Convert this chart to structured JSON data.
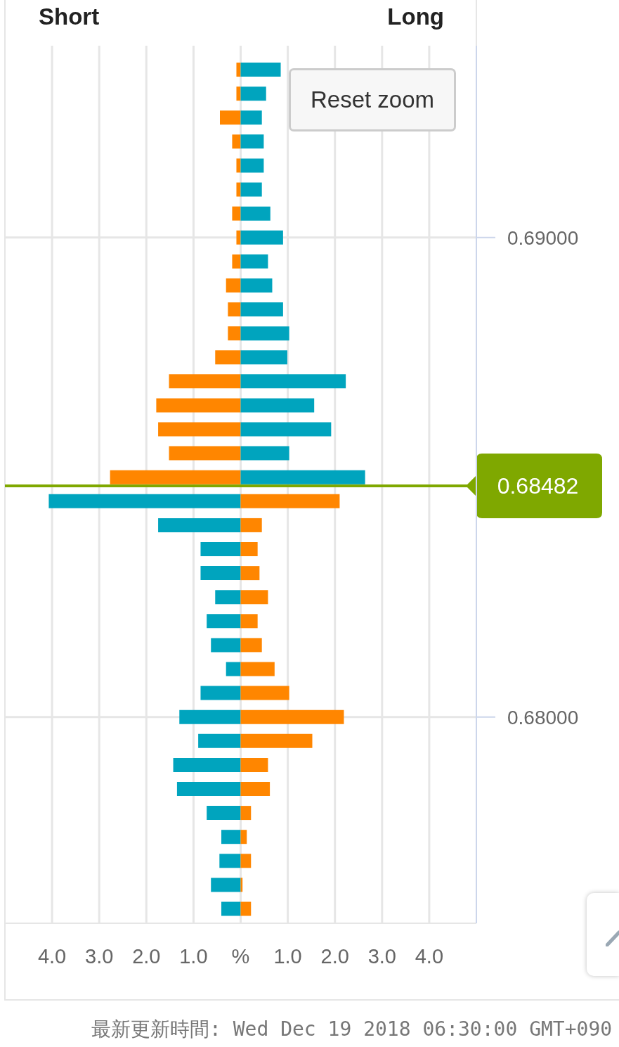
{
  "chart_data": {
    "type": "bar",
    "orientation": "horizontal",
    "stacked": true,
    "x": [
      0.6935,
      0.693,
      0.6925,
      0.692,
      0.6915,
      0.691,
      0.6905,
      0.69,
      0.6895,
      0.689,
      0.6885,
      0.688,
      0.6875,
      0.687,
      0.6865,
      0.686,
      0.6855,
      0.685,
      0.6845,
      0.684,
      0.6835,
      0.683,
      0.6825,
      0.682,
      0.6815,
      0.681,
      0.6805,
      0.68,
      0.6795,
      0.679,
      0.6785,
      0.678,
      0.6775,
      0.677,
      0.6765,
      0.676
    ],
    "series": [
      {
        "colors": [
          "#ff8600",
          "#ff8600",
          "#ff8600",
          "#ff8600",
          "#ff8600",
          "#ff8600",
          "#ff8600",
          "#ff8600",
          "#ff8600",
          "#ff8600",
          "#ff8600",
          "#ff8600",
          "#ff8600",
          "#ff8600",
          "#ff8600",
          "#ff8600",
          "#ff8600",
          "#ff8600",
          "#00a4be",
          "#00a4be",
          "#00a4be",
          "#00a4be",
          "#00a4be",
          "#00a4be",
          "#00a4be",
          "#00a4be",
          "#00a4be",
          "#00a4be",
          "#00a4be",
          "#00a4be",
          "#00a4be",
          "#00a4be",
          "#00a4be",
          "#00a4be",
          "#00a4be",
          "#00a4be"
        ],
        "values": [
          -0.09,
          -0.09,
          -0.44,
          -0.18,
          -0.09,
          -0.09,
          -0.18,
          -0.09,
          -0.18,
          -0.31,
          -0.27,
          -0.27,
          -0.54,
          -1.52,
          -1.79,
          -1.75,
          -1.52,
          -2.77,
          -4.07,
          -1.75,
          -0.85,
          -0.85,
          -0.54,
          -0.72,
          -0.63,
          -0.31,
          -0.85,
          -1.3,
          -0.9,
          -1.43,
          -1.35,
          -0.72,
          -0.41,
          -0.45,
          -0.63,
          -0.41
        ]
      },
      {
        "colors": [
          "#00a4be",
          "#00a4be",
          "#00a4be",
          "#00a4be",
          "#00a4be",
          "#00a4be",
          "#00a4be",
          "#00a4be",
          "#00a4be",
          "#00a4be",
          "#00a4be",
          "#00a4be",
          "#00a4be",
          "#00a4be",
          "#00a4be",
          "#00a4be",
          "#00a4be",
          "#00a4be",
          "#ff8600",
          "#ff8600",
          "#ff8600",
          "#ff8600",
          "#ff8600",
          "#ff8600",
          "#ff8600",
          "#ff8600",
          "#ff8600",
          "#ff8600",
          "#ff8600",
          "#ff8600",
          "#ff8600",
          "#ff8600",
          "#ff8600",
          "#ff8600",
          "#ff8600",
          "#ff8600"
        ],
        "values": [
          0.85,
          0.54,
          0.45,
          0.49,
          0.49,
          0.45,
          0.63,
          0.9,
          0.58,
          0.67,
          0.9,
          1.03,
          0.99,
          2.23,
          1.56,
          1.92,
          1.03,
          2.64,
          2.1,
          0.45,
          0.36,
          0.4,
          0.58,
          0.36,
          0.45,
          0.72,
          1.03,
          2.19,
          1.52,
          0.58,
          0.62,
          0.22,
          0.13,
          0.22,
          0.04,
          0.22
        ]
      }
    ],
    "xlim": [
      -5,
      5
    ],
    "xticks": [
      {
        "value": -4,
        "label": "4.0"
      },
      {
        "value": -3,
        "label": "3.0"
      },
      {
        "value": -2,
        "label": "2.0"
      },
      {
        "value": -1,
        "label": "1.0"
      },
      {
        "value": 0,
        "label": "%"
      },
      {
        "value": 1,
        "label": "1.0"
      },
      {
        "value": 2,
        "label": "2.0"
      },
      {
        "value": 3,
        "label": "3.0"
      },
      {
        "value": 4,
        "label": "4.0"
      }
    ],
    "ylim": [
      0.6757,
      0.694
    ],
    "yticks": [
      {
        "value": 0.68,
        "label": "0.68000"
      },
      {
        "value": 0.69,
        "label": "0.69000"
      }
    ],
    "grid": true,
    "ref_lines": [
      {
        "axis": "y",
        "value": 0.68482,
        "label": "0.68482",
        "color": "#7fa800"
      }
    ],
    "annotations": [
      "Short",
      "Long",
      "Reset zoom",
      "最新更新時間: Wed Dec 19 2018 06:30:00 GMT+090"
    ]
  }
}
